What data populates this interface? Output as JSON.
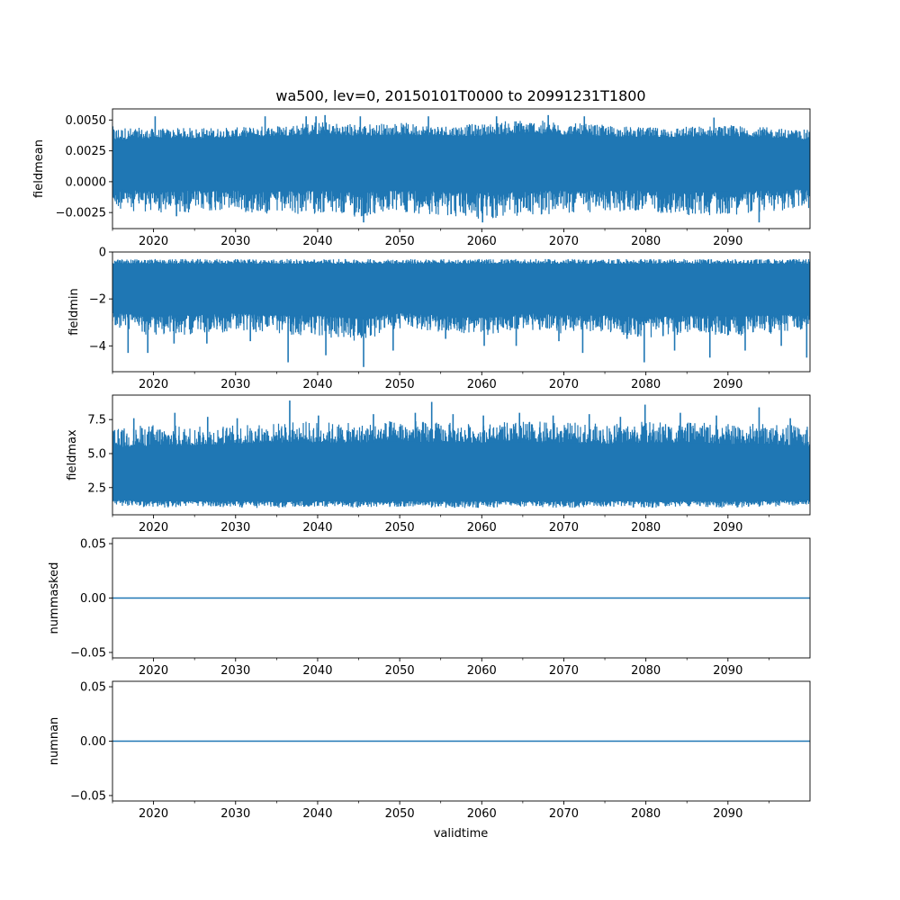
{
  "figure_title": "wa500, lev=0, 20150101T0000 to 20991231T1800",
  "x_label": "validtime",
  "series_color": "#1f77b4",
  "chart_data": [
    {
      "type": "line",
      "name": "fieldmean",
      "ylabel": "fieldmean",
      "title": "wa500, lev=0, 20150101T0000 to 20991231T1800",
      "xlim": [
        2015.0,
        2100.0
      ],
      "ylim": [
        -0.0038,
        0.0059
      ],
      "yticks": [
        -0.0025,
        0.0,
        0.0025,
        0.005
      ],
      "ytick_labels": [
        "−0.0025",
        "0.0000",
        "0.0025",
        "0.0050"
      ],
      "xticks": [
        2020,
        2030,
        2040,
        2050,
        2060,
        2070,
        2080,
        2090
      ],
      "xtick_labels": [
        "2020",
        "2030",
        "2040",
        "2050",
        "2060",
        "2070",
        "2080",
        "2090"
      ],
      "x": [
        2015,
        2020,
        2025,
        2030,
        2035,
        2040,
        2045,
        2050,
        2055,
        2060,
        2065,
        2070,
        2075,
        2080,
        2085,
        2090,
        2095,
        2100
      ],
      "envelope_low": [
        -0.0022,
        -0.0026,
        -0.0025,
        -0.0024,
        -0.0028,
        -0.0026,
        -0.003,
        -0.0025,
        -0.0027,
        -0.0032,
        -0.0028,
        -0.0026,
        -0.0025,
        -0.0024,
        -0.0028,
        -0.0027,
        -0.0025,
        -0.0022
      ],
      "envelope_high": [
        0.0045,
        0.0043,
        0.0044,
        0.0044,
        0.0046,
        0.0049,
        0.0047,
        0.0048,
        0.0046,
        0.0047,
        0.0051,
        0.0048,
        0.0046,
        0.0044,
        0.0045,
        0.0046,
        0.0044,
        0.0042
      ],
      "core_low": [
        -0.0006,
        -0.0008,
        -0.0007,
        -0.0007,
        -0.0008,
        -0.0007,
        -0.0009,
        -0.0007,
        -0.0008,
        -0.0009,
        -0.0008,
        -0.0007,
        -0.0007,
        -0.0007,
        -0.0008,
        -0.0008,
        -0.0007,
        -0.0006
      ],
      "core_high": [
        0.0034,
        0.0035,
        0.0035,
        0.0036,
        0.0037,
        0.0038,
        0.0037,
        0.0038,
        0.0037,
        0.0037,
        0.0039,
        0.0038,
        0.0037,
        0.0036,
        0.0036,
        0.0037,
        0.0036,
        0.0034
      ],
      "spikes": [
        [
          2020.2,
          0.0053
        ],
        [
          2022.8,
          -0.0028
        ],
        [
          2033.6,
          0.0053
        ],
        [
          2038.6,
          0.0053
        ],
        [
          2039.8,
          0.0053
        ],
        [
          2040.9,
          0.0054
        ],
        [
          2045.2,
          0.0053
        ],
        [
          2045.6,
          -0.0033
        ],
        [
          2053.5,
          0.0053
        ],
        [
          2060.1,
          -0.0033
        ],
        [
          2061.8,
          0.0053
        ],
        [
          2068.1,
          0.0054
        ],
        [
          2072.5,
          0.0053
        ],
        [
          2088.3,
          0.0052
        ],
        [
          2093.8,
          -0.0033
        ]
      ]
    },
    {
      "type": "line",
      "name": "fieldmin",
      "ylabel": "fieldmin",
      "xlim": [
        2015.0,
        2100.0
      ],
      "ylim": [
        -5.1,
        0.0
      ],
      "yticks": [
        -4,
        -2,
        0
      ],
      "ytick_labels": [
        "−4",
        "−2",
        "0"
      ],
      "xticks": [
        2020,
        2030,
        2040,
        2050,
        2060,
        2070,
        2080,
        2090
      ],
      "xtick_labels": [
        "2020",
        "2030",
        "2040",
        "2050",
        "2060",
        "2070",
        "2080",
        "2090"
      ],
      "x": [
        2015,
        2020,
        2025,
        2030,
        2035,
        2040,
        2045,
        2050,
        2055,
        2060,
        2065,
        2070,
        2075,
        2080,
        2085,
        2090,
        2095,
        2100
      ],
      "envelope_low": [
        -3.2,
        -3.6,
        -3.5,
        -3.4,
        -3.5,
        -3.6,
        -3.8,
        -3.3,
        -3.4,
        -3.6,
        -3.3,
        -3.5,
        -3.4,
        -3.7,
        -3.5,
        -3.6,
        -3.5,
        -3.4
      ],
      "envelope_high": [
        -0.3,
        -0.3,
        -0.3,
        -0.3,
        -0.3,
        -0.3,
        -0.3,
        -0.3,
        -0.3,
        -0.3,
        -0.3,
        -0.3,
        -0.3,
        -0.3,
        -0.3,
        -0.3,
        -0.3,
        -0.3
      ],
      "core_low": [
        -2.6,
        -2.7,
        -2.7,
        -2.6,
        -2.7,
        -2.7,
        -2.8,
        -2.6,
        -2.7,
        -2.8,
        -2.6,
        -2.7,
        -2.7,
        -2.8,
        -2.7,
        -2.7,
        -2.7,
        -2.6
      ],
      "core_high": [
        -0.5,
        -0.5,
        -0.5,
        -0.5,
        -0.5,
        -0.5,
        -0.5,
        -0.5,
        -0.5,
        -0.5,
        -0.5,
        -0.5,
        -0.5,
        -0.5,
        -0.5,
        -0.5,
        -0.5,
        -0.5
      ],
      "spikes": [
        [
          2016.9,
          -4.3
        ],
        [
          2019.3,
          -4.3
        ],
        [
          2022.5,
          -3.9
        ],
        [
          2026.5,
          -3.9
        ],
        [
          2031.8,
          -3.8
        ],
        [
          2036.4,
          -4.7
        ],
        [
          2041.0,
          -4.4
        ],
        [
          2045.6,
          -4.9
        ],
        [
          2049.2,
          -4.2
        ],
        [
          2055.6,
          -3.7
        ],
        [
          2060.3,
          -4.0
        ],
        [
          2064.2,
          -4.0
        ],
        [
          2069.4,
          -3.8
        ],
        [
          2072.3,
          -4.3
        ],
        [
          2077.7,
          -3.7
        ],
        [
          2079.8,
          -4.7
        ],
        [
          2083.5,
          -4.2
        ],
        [
          2087.8,
          -4.5
        ],
        [
          2092.1,
          -4.2
        ],
        [
          2096.5,
          -4.0
        ],
        [
          2099.6,
          -4.5
        ]
      ]
    },
    {
      "type": "line",
      "name": "fieldmax",
      "ylabel": "fieldmax",
      "xlim": [
        2015.0,
        2100.0
      ],
      "ylim": [
        0.5,
        9.3
      ],
      "yticks": [
        2.5,
        5.0,
        7.5
      ],
      "ytick_labels": [
        "2.5",
        "5.0",
        "7.5"
      ],
      "xticks": [
        2020,
        2030,
        2040,
        2050,
        2060,
        2070,
        2080,
        2090
      ],
      "xtick_labels": [
        "2020",
        "2030",
        "2040",
        "2050",
        "2060",
        "2070",
        "2080",
        "2090"
      ],
      "x": [
        2015,
        2020,
        2025,
        2030,
        2035,
        2040,
        2045,
        2050,
        2055,
        2060,
        2065,
        2070,
        2075,
        2080,
        2085,
        2090,
        2095,
        2100
      ],
      "envelope_low": [
        1.2,
        1.0,
        1.1,
        1.0,
        1.0,
        1.1,
        1.0,
        1.1,
        1.0,
        1.0,
        1.1,
        1.0,
        1.1,
        1.0,
        1.1,
        1.0,
        1.1,
        1.2
      ],
      "envelope_high": [
        6.8,
        7.2,
        7.0,
        7.1,
        7.3,
        7.4,
        7.2,
        7.5,
        7.3,
        7.2,
        7.4,
        7.3,
        7.2,
        7.4,
        7.3,
        7.2,
        7.3,
        7.0
      ],
      "core_low": [
        1.6,
        1.5,
        1.5,
        1.5,
        1.5,
        1.5,
        1.5,
        1.5,
        1.5,
        1.5,
        1.5,
        1.5,
        1.5,
        1.5,
        1.5,
        1.5,
        1.5,
        1.6
      ],
      "core_high": [
        5.4,
        5.6,
        5.6,
        5.7,
        5.8,
        5.8,
        5.8,
        5.9,
        5.8,
        5.8,
        5.8,
        5.8,
        5.7,
        5.8,
        5.8,
        5.7,
        5.7,
        5.5
      ],
      "spikes": [
        [
          2017.6,
          7.6
        ],
        [
          2022.6,
          8.0
        ],
        [
          2026.6,
          7.7
        ],
        [
          2030.2,
          7.6
        ],
        [
          2036.6,
          8.9
        ],
        [
          2040.1,
          7.8
        ],
        [
          2046.8,
          7.9
        ],
        [
          2051.9,
          8.0
        ],
        [
          2053.9,
          8.8
        ],
        [
          2056.5,
          7.9
        ],
        [
          2060.2,
          7.8
        ],
        [
          2064.6,
          8.0
        ],
        [
          2068.7,
          7.8
        ],
        [
          2073.1,
          7.9
        ],
        [
          2076.9,
          7.7
        ],
        [
          2079.9,
          8.6
        ],
        [
          2084.2,
          8.0
        ],
        [
          2088.6,
          7.8
        ],
        [
          2093.8,
          8.4
        ],
        [
          2097.6,
          7.6
        ]
      ]
    },
    {
      "type": "line",
      "name": "nummasked",
      "ylabel": "nummasked",
      "xlim": [
        2015.0,
        2100.0
      ],
      "ylim": [
        -0.055,
        0.055
      ],
      "yticks": [
        -0.05,
        0.0,
        0.05
      ],
      "ytick_labels": [
        "−0.05",
        "0.00",
        "0.05"
      ],
      "xticks": [
        2020,
        2030,
        2040,
        2050,
        2060,
        2070,
        2080,
        2090
      ],
      "xtick_labels": [
        "2020",
        "2030",
        "2040",
        "2050",
        "2060",
        "2070",
        "2080",
        "2090"
      ],
      "x": [
        2015,
        2100
      ],
      "values": [
        0,
        0
      ]
    },
    {
      "type": "line",
      "name": "numnan",
      "ylabel": "numnan",
      "xlabel": "validtime",
      "xlim": [
        2015.0,
        2100.0
      ],
      "ylim": [
        -0.055,
        0.055
      ],
      "yticks": [
        -0.05,
        0.0,
        0.05
      ],
      "ytick_labels": [
        "−0.05",
        "0.00",
        "0.05"
      ],
      "xticks": [
        2020,
        2030,
        2040,
        2050,
        2060,
        2070,
        2080,
        2090
      ],
      "xtick_labels": [
        "2020",
        "2030",
        "2040",
        "2050",
        "2060",
        "2070",
        "2080",
        "2090"
      ],
      "x": [
        2015,
        2100
      ],
      "values": [
        0,
        0
      ]
    }
  ]
}
